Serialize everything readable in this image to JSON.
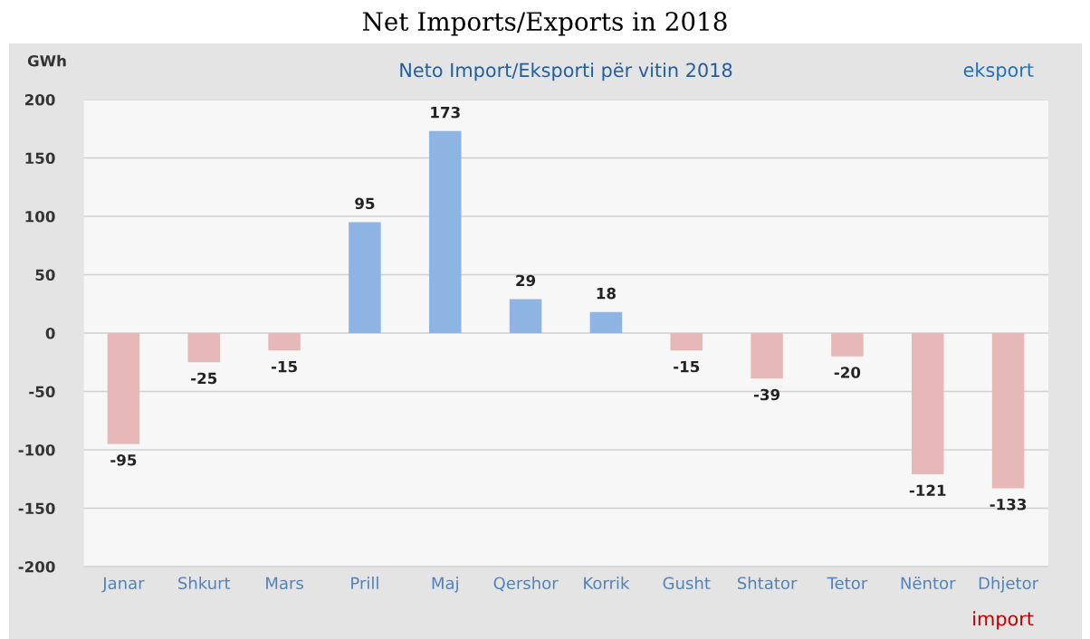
{
  "chart_data": {
    "type": "bar",
    "title": "Net Imports/Exports in 2018",
    "subtitle": "Neto Import/Eksporti për vitin 2018",
    "ylabel": "GWh",
    "annotations": [
      "eksport",
      "import"
    ],
    "categories": [
      "Janar",
      "Shkurt",
      "Mars",
      "Prill",
      "Maj",
      "Qershor",
      "Korrik",
      "Gusht",
      "Shtator",
      "Tetor",
      "Nëntor",
      "Dhjetor"
    ],
    "values": [
      -95,
      -25,
      -15,
      95,
      173,
      29,
      18,
      -15,
      -39,
      -20,
      -121,
      -133
    ],
    "colors": [
      "#e6b9b8",
      "#e6b9b8",
      "#e6b9b8",
      "#8eb4e3",
      "#8eb4e3",
      "#8eb4e3",
      "#8eb4e3",
      "#e6b9b8",
      "#e6b9b8",
      "#e6b9b8",
      "#e6b9b8",
      "#e6b9b8"
    ],
    "ylim": [
      -200,
      200
    ],
    "yticks": [
      -200,
      -150,
      -100,
      -50,
      0,
      50,
      100,
      150,
      200
    ],
    "grid": "y",
    "data_labels": true
  }
}
